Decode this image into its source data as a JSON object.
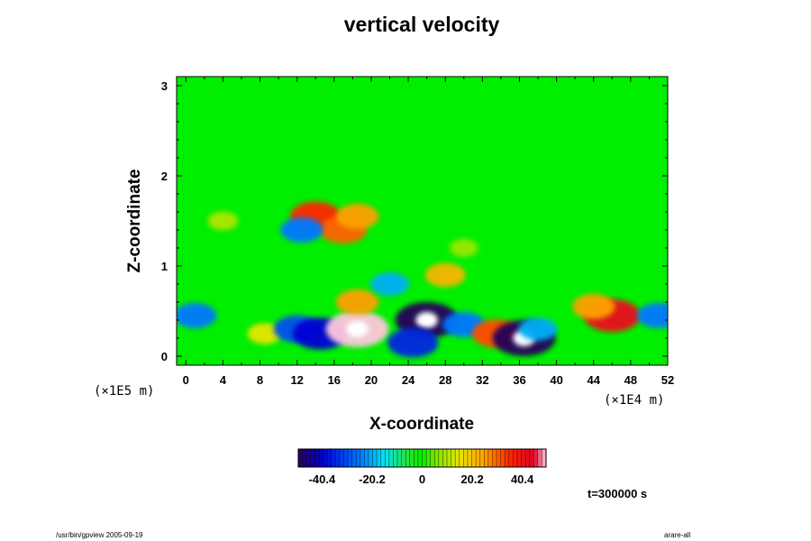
{
  "chart_data": {
    "type": "heatmap",
    "title": "vertical velocity",
    "xlabel": "X-coordinate",
    "ylabel": "Z-coordinate",
    "x_unit": "(×1E4 m)",
    "y_unit": "(×1E5 m)",
    "xlim": [
      -1,
      52
    ],
    "ylim": [
      -0.1,
      3.1
    ],
    "x_ticks": [
      "0",
      "4",
      "8",
      "12",
      "16",
      "20",
      "24",
      "28",
      "32",
      "36",
      "40",
      "44",
      "48",
      "52"
    ],
    "y_ticks": [
      "0",
      "1",
      "2",
      "3"
    ],
    "colorbar": {
      "range": [
        -50,
        50
      ],
      "tick_labels": [
        "-40.4",
        "-20.2",
        "0",
        "20.2",
        "40.4"
      ],
      "tick_values": [
        -40.4,
        -20.2,
        0,
        20.2,
        40.4
      ]
    },
    "features": [
      {
        "x": 1,
        "z": 0.45,
        "value": -25
      },
      {
        "x": 8.5,
        "z": 0.25,
        "value": 15
      },
      {
        "x": 12,
        "z": 0.3,
        "value": -30
      },
      {
        "x": 14.5,
        "z": 0.25,
        "value": -40
      },
      {
        "x": 18.5,
        "z": 0.3,
        "value": 55
      },
      {
        "x": 18.5,
        "z": 0.6,
        "value": 25
      },
      {
        "x": 26,
        "z": 0.4,
        "value": -50
      },
      {
        "x": 24.5,
        "z": 0.15,
        "value": -35
      },
      {
        "x": 30,
        "z": 0.35,
        "value": -25
      },
      {
        "x": 33.5,
        "z": 0.25,
        "value": 32
      },
      {
        "x": 36.5,
        "z": 0.2,
        "value": -50
      },
      {
        "x": 38,
        "z": 0.3,
        "value": -20
      },
      {
        "x": 46,
        "z": 0.45,
        "value": 42
      },
      {
        "x": 44,
        "z": 0.55,
        "value": 25
      },
      {
        "x": 51,
        "z": 0.45,
        "value": -25
      },
      {
        "x": 14,
        "z": 1.55,
        "value": 35
      },
      {
        "x": 17,
        "z": 1.4,
        "value": 30
      },
      {
        "x": 12.5,
        "z": 1.4,
        "value": -25
      },
      {
        "x": 18.5,
        "z": 1.55,
        "value": 25
      },
      {
        "x": 22,
        "z": 0.8,
        "value": -20
      },
      {
        "x": 28,
        "z": 0.9,
        "value": 22
      },
      {
        "x": 4,
        "z": 1.5,
        "value": 10
      },
      {
        "x": 30,
        "z": 1.2,
        "value": 8
      }
    ],
    "grid": false
  },
  "text": {
    "time": "t=300000 s",
    "footer_left": "/usr/bin/gpview 2005-09-19",
    "footer_right": "arare-all"
  }
}
